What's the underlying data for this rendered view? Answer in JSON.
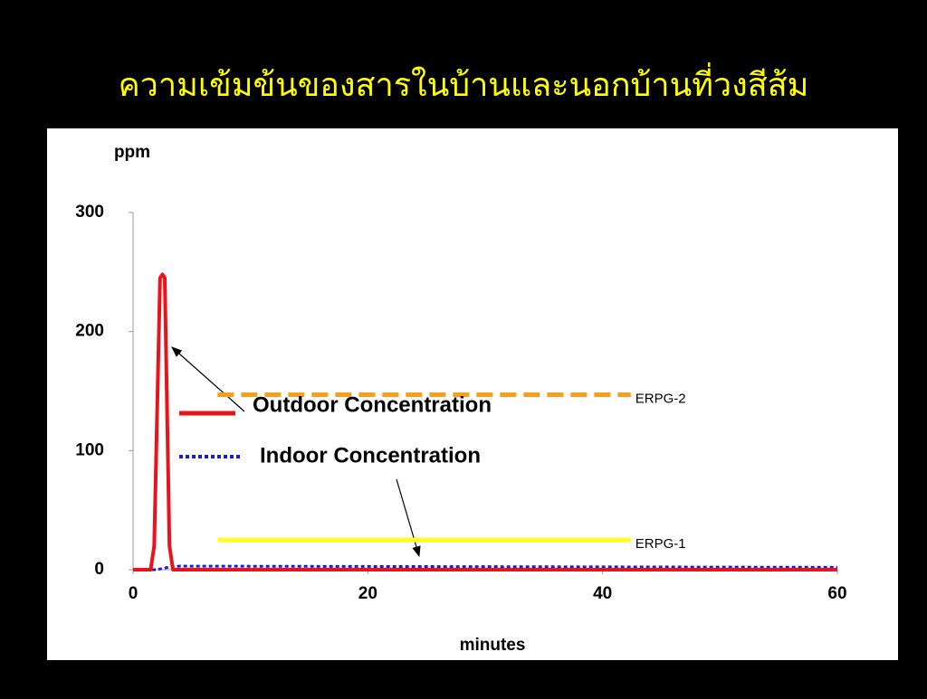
{
  "chart_data": {
    "type": "line",
    "title": "ความเข้มข้นของสารในบ้านและนอกบ้านที่วงสีส้ม",
    "y_label": "ppm",
    "x_label": "minutes",
    "xlim": [
      0,
      60
    ],
    "xticks": [
      0,
      20,
      40,
      60
    ],
    "ylim": [
      0,
      300
    ],
    "yticks": [
      0,
      100,
      200,
      300
    ],
    "grid": false,
    "series": [
      {
        "name": "Outdoor Concentration",
        "color": "#e8141b",
        "style": "solid",
        "x": [
          0,
          1.5,
          1.8,
          2.3,
          2.5,
          2.7,
          3.1,
          3.4,
          60
        ],
        "values": [
          0,
          0,
          20,
          245,
          248,
          245,
          20,
          0,
          0
        ]
      },
      {
        "name": "Indoor Concentration",
        "color": "#1a1adb",
        "style": "dotted",
        "x": [
          0,
          2,
          3,
          4,
          60
        ],
        "values": [
          0,
          0,
          2,
          3,
          2
        ]
      }
    ],
    "reference_lines": [
      {
        "name": "ERPG-2",
        "value": 147,
        "xrange": [
          7.2,
          42.4
        ],
        "color": "#f5a01a",
        "style": "dashed"
      },
      {
        "name": "ERPG-1",
        "value": 25,
        "xrange": [
          7.2,
          42.4
        ],
        "color": "#ffff1a",
        "style": "solid"
      }
    ]
  }
}
